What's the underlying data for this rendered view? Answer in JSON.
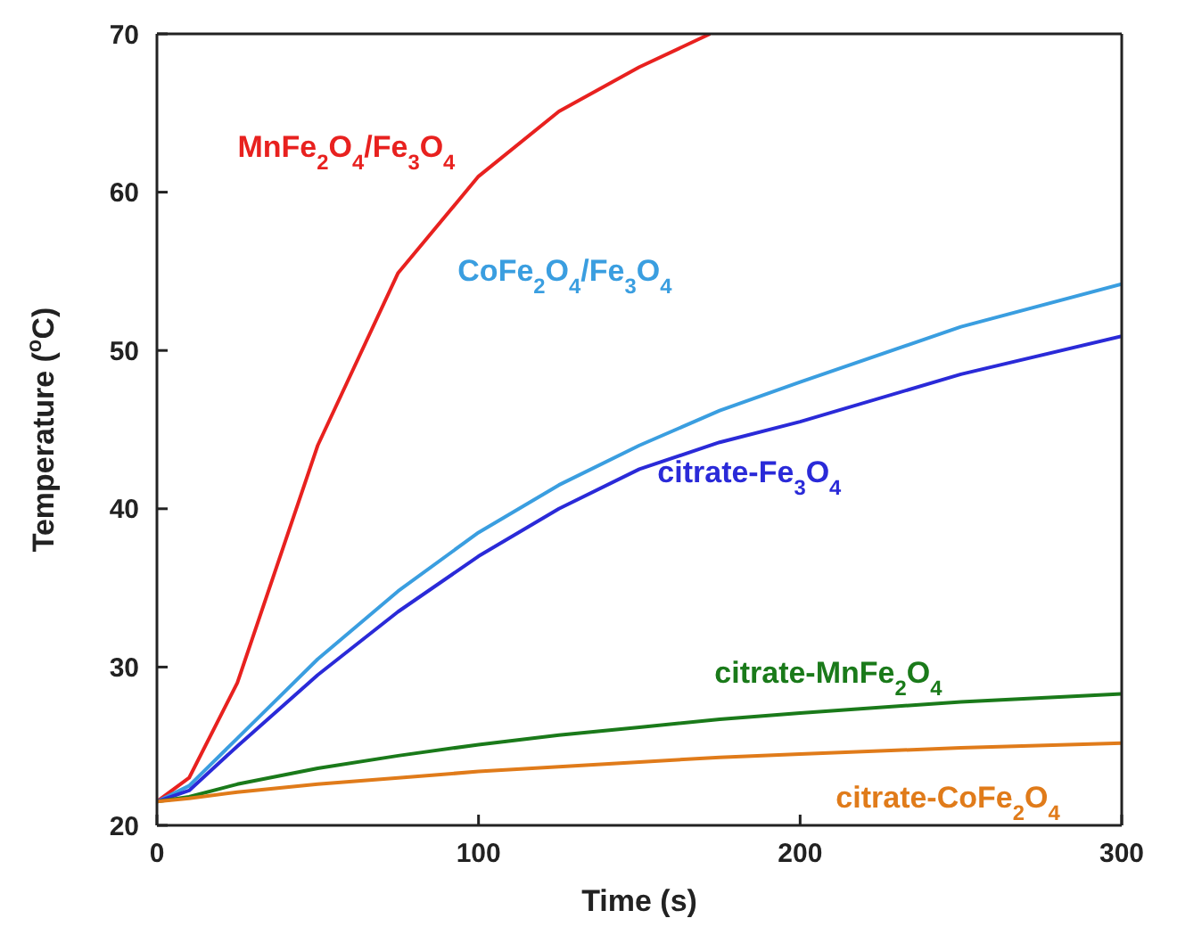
{
  "chart_data": {
    "type": "line",
    "xlabel": "Time (s)",
    "ylabel": "Temperature ($^{o}$C)",
    "xlim": [
      0,
      300
    ],
    "ylim": [
      20,
      70
    ],
    "xticks": [
      0,
      100,
      200,
      300
    ],
    "yticks": [
      20,
      30,
      40,
      50,
      60,
      70
    ],
    "grid": false,
    "marker": "none",
    "line_style": "solid",
    "series": [
      {
        "name": "MnFe$_{2}$O$_{4}$/Fe$_{3}$O$_{4}$",
        "color": "#e8211f",
        "x": [
          0,
          10,
          25,
          50,
          75,
          100,
          125,
          150,
          172
        ],
        "values": [
          21.5,
          23,
          29,
          44,
          54.9,
          61,
          65.1,
          67.9,
          70
        ]
      },
      {
        "name": "CoFe$_{2}$O$_{4}$/Fe$_{3}$O$_{4}$",
        "color": "#3a9ee0",
        "x": [
          0,
          10,
          25,
          50,
          75,
          100,
          125,
          150,
          175,
          200,
          250,
          300
        ],
        "values": [
          21.5,
          22.5,
          25.5,
          30.5,
          34.8,
          38.5,
          41.5,
          44,
          46.2,
          48,
          51.5,
          54.2
        ]
      },
      {
        "name": "citrate-Fe$_{3}$O$_{4}$",
        "color": "#2a2ad8",
        "x": [
          0,
          10,
          25,
          50,
          75,
          100,
          125,
          150,
          175,
          200,
          250,
          300
        ],
        "values": [
          21.5,
          22.2,
          25,
          29.5,
          33.5,
          37,
          40,
          42.5,
          44.2,
          45.5,
          48.5,
          50.9
        ]
      },
      {
        "name": "citrate-MnFe$_{2}$O$_{4}$",
        "color": "#1a7a1a",
        "x": [
          0,
          10,
          25,
          50,
          75,
          100,
          125,
          150,
          175,
          200,
          250,
          300
        ],
        "values": [
          21.5,
          21.8,
          22.6,
          23.6,
          24.4,
          25.1,
          25.7,
          26.2,
          26.7,
          27.1,
          27.8,
          28.3
        ]
      },
      {
        "name": "citrate-CoFe$_{2}$O$_{4}$",
        "color": "#e07b1a",
        "x": [
          0,
          10,
          25,
          50,
          75,
          100,
          125,
          150,
          175,
          200,
          250,
          300
        ],
        "values": [
          21.5,
          21.7,
          22.1,
          22.6,
          23.0,
          23.4,
          23.7,
          24.0,
          24.3,
          24.5,
          24.9,
          25.2
        ]
      }
    ]
  }
}
